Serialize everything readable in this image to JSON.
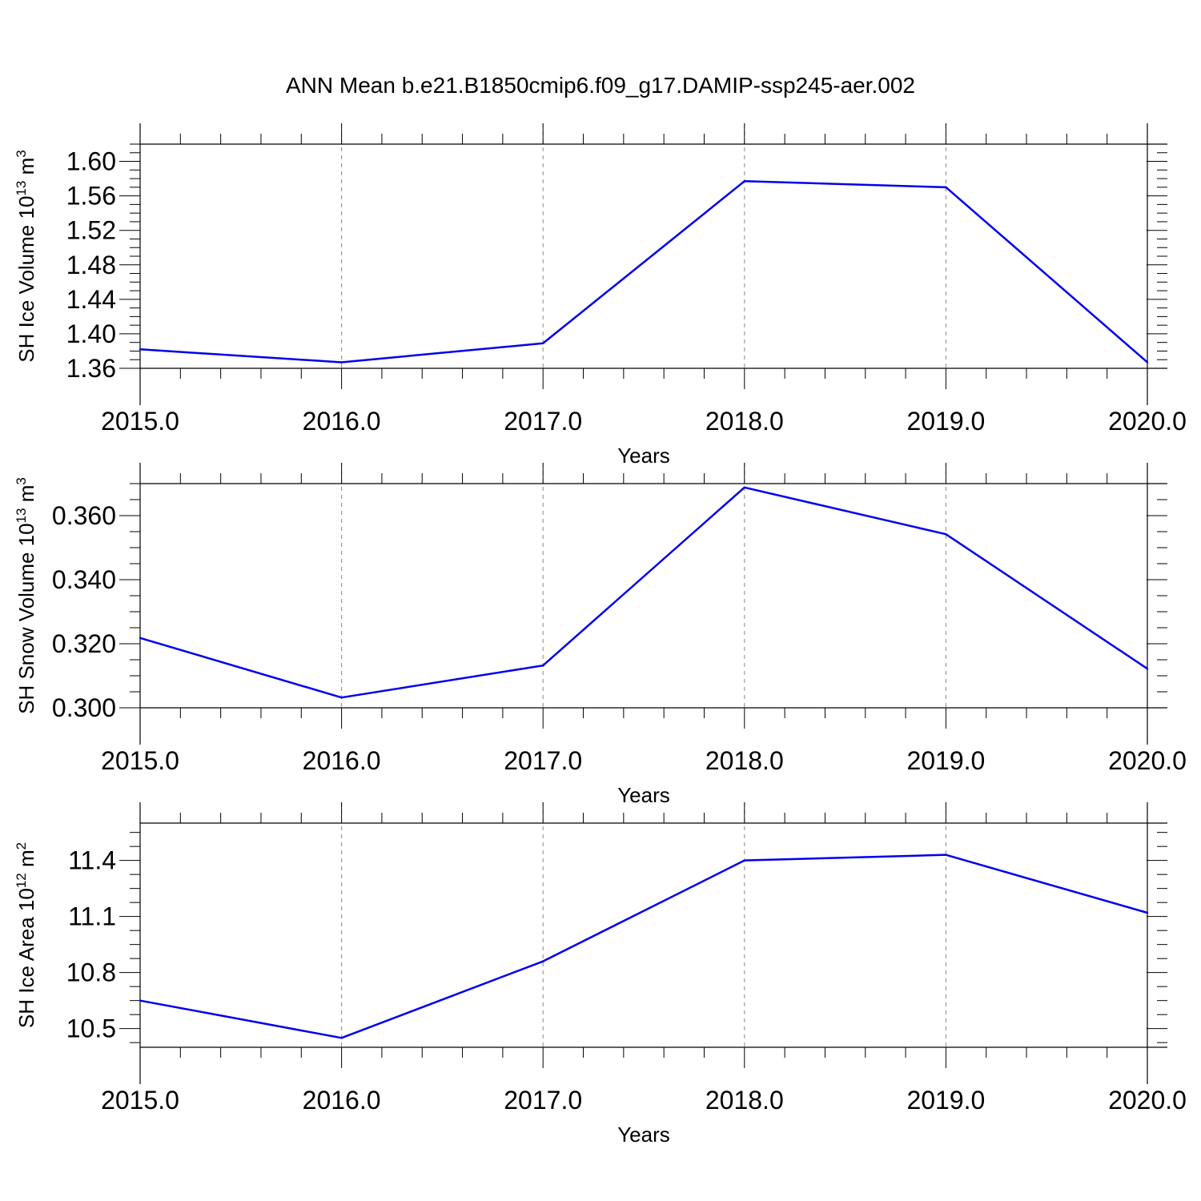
{
  "figure": {
    "title": "ANN Mean b.e21.B1850cmip6.f09_g17.DAMIP-ssp245-aer.002"
  },
  "colors": {
    "series": "#0000ee",
    "grid": "#888888",
    "axis": "#000000"
  },
  "chart_data": [
    {
      "type": "line",
      "ylabel": "SH Ice Volume",
      "yunit": "10",
      "yunit_exp": "13",
      "yunit_tail": " m",
      "yunit_tail_exp": "3",
      "xlabel": "Years",
      "x": [
        2015,
        2016,
        2017,
        2018,
        2019,
        2020
      ],
      "y": [
        1.382,
        1.367,
        1.389,
        1.577,
        1.57,
        1.367
      ],
      "xlim": [
        2015,
        2020
      ],
      "ylim": [
        1.36,
        1.62
      ],
      "yticks": [
        "1.36",
        "1.40",
        "1.44",
        "1.48",
        "1.52",
        "1.56",
        "1.60"
      ],
      "xticks": [
        "2015.0",
        "2016.0",
        "2017.0",
        "2018.0",
        "2019.0",
        "2020.0"
      ],
      "grid": "vertical dashed"
    },
    {
      "type": "line",
      "ylabel": "SH Snow Volume",
      "yunit": "10",
      "yunit_exp": "13",
      "yunit_tail": " m",
      "yunit_tail_exp": "3",
      "xlabel": "Years",
      "x": [
        2015,
        2016,
        2017,
        2018,
        2019,
        2020
      ],
      "y": [
        0.3218,
        0.3032,
        0.3132,
        0.3688,
        0.3542,
        0.3122
      ],
      "xlim": [
        2015,
        2020
      ],
      "ylim": [
        0.3,
        0.37
      ],
      "yticks": [
        "0.300",
        "0.320",
        "0.340",
        "0.360"
      ],
      "xticks": [
        "2015.0",
        "2016.0",
        "2017.0",
        "2018.0",
        "2019.0",
        "2020.0"
      ],
      "grid": "vertical dashed"
    },
    {
      "type": "line",
      "ylabel": "SH Ice Area",
      "yunit": "10",
      "yunit_exp": "12",
      "yunit_tail": " m",
      "yunit_tail_exp": "2",
      "xlabel": "Years",
      "x": [
        2015,
        2016,
        2017,
        2018,
        2019,
        2020
      ],
      "y": [
        10.65,
        10.45,
        10.86,
        11.4,
        11.43,
        11.12
      ],
      "xlim": [
        2015,
        2020
      ],
      "ylim": [
        10.4,
        11.6
      ],
      "yticks": [
        "10.5",
        "10.8",
        "11.1",
        "11.4"
      ],
      "xticks": [
        "2015.0",
        "2016.0",
        "2017.0",
        "2018.0",
        "2019.0",
        "2020.0"
      ],
      "grid": "vertical dashed"
    }
  ]
}
